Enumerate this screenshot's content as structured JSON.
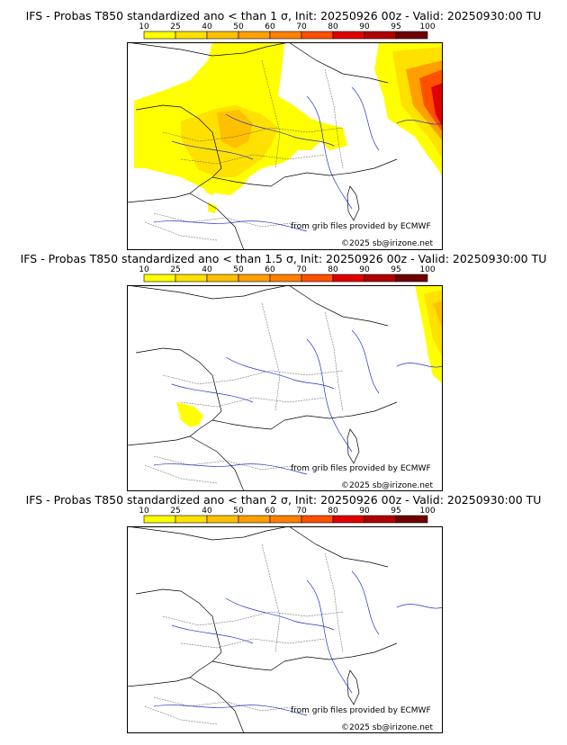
{
  "colorbar": {
    "ticks": [
      "10",
      "25",
      "40",
      "50",
      "60",
      "70",
      "80",
      "90",
      "95",
      "100"
    ],
    "colors": [
      "#ffff00",
      "#ffe100",
      "#ffc000",
      "#ffa000",
      "#ff8000",
      "#ff5000",
      "#e00000",
      "#b00000",
      "#700000"
    ]
  },
  "panels": [
    {
      "title": "IFS - Probas T850  standardized ano < than 1 σ, Init: 20250926 00z - Valid: 20250930:00 TU",
      "credit_source": "from grib files provided by ECMWF",
      "credit_copyright": "©2025 sb@irizone.net"
    },
    {
      "title": "IFS - Probas T850  standardized ano < than 1.5 σ, Init: 20250926 00z - Valid: 20250930:00 TU",
      "credit_source": "from grib files provided by ECMWF",
      "credit_copyright": "©2025 sb@irizone.net"
    },
    {
      "title": "IFS - Probas T850  standardized ano < than 2 σ, Init: 20250926 00z - Valid: 20250930:00 TU",
      "credit_source": "from grib files provided by ECMWF",
      "credit_copyright": "©2025 sb@irizone.net"
    }
  ]
}
